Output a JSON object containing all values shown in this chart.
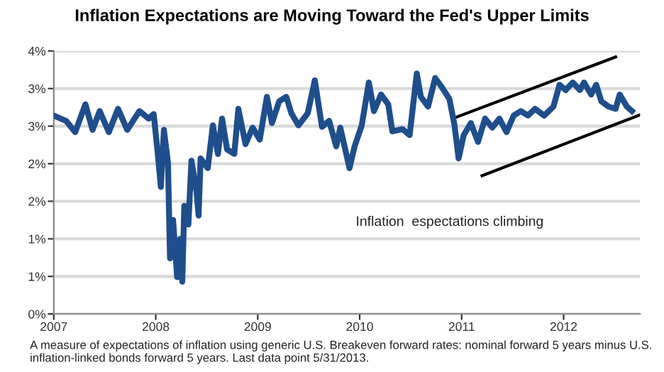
{
  "chart_data": {
    "type": "line",
    "title": "Inflation Expectations are Moving Toward the Fed's Upper Limits",
    "series": [
      {
        "color": "#1f4e8c",
        "x": [
          2007.0,
          2007.12,
          2007.21,
          2007.31,
          2007.38,
          2007.45,
          2007.54,
          2007.63,
          2007.72,
          2007.84,
          2007.93,
          2007.98,
          2008.02,
          2008.05,
          2008.08,
          2008.12,
          2008.14,
          2008.17,
          2008.21,
          2008.24,
          2008.26,
          2008.28,
          2008.32,
          2008.35,
          2008.4,
          2008.42,
          2008.44,
          2008.51,
          2008.56,
          2008.61,
          2008.65,
          2008.7,
          2008.77,
          2008.81,
          2008.88,
          2008.95,
          2009.02,
          2009.09,
          2009.14,
          2009.21,
          2009.28,
          2009.33,
          2009.4,
          2009.49,
          2009.56,
          2009.63,
          2009.7,
          2009.77,
          2009.81,
          2009.9,
          2009.95,
          2010.02,
          2010.09,
          2010.14,
          2010.21,
          2010.28,
          2010.32,
          2010.42,
          2010.49,
          2010.56,
          2010.6,
          2010.67,
          2010.74,
          2010.81,
          2010.88,
          2010.93,
          2010.97,
          2011.02,
          2011.09,
          2011.16,
          2011.23,
          2011.3,
          2011.37,
          2011.44,
          2011.51,
          2011.58,
          2011.65,
          2011.72,
          2011.81,
          2011.9,
          2011.96,
          2012.02,
          2012.09,
          2012.16,
          2012.2,
          2012.27,
          2012.32,
          2012.37,
          2012.44,
          2012.51,
          2012.55,
          2012.62,
          2012.67
        ],
        "values": [
          2.64,
          2.57,
          2.42,
          2.79,
          2.45,
          2.7,
          2.42,
          2.73,
          2.45,
          2.7,
          2.6,
          2.66,
          2.13,
          1.69,
          2.45,
          2.01,
          0.74,
          1.25,
          0.49,
          1.0,
          0.43,
          1.44,
          1.19,
          2.04,
          1.63,
          1.31,
          2.07,
          1.94,
          2.51,
          2.13,
          2.6,
          2.19,
          2.13,
          2.73,
          2.26,
          2.48,
          2.32,
          2.89,
          2.54,
          2.83,
          2.89,
          2.67,
          2.51,
          2.67,
          3.11,
          2.49,
          2.57,
          2.23,
          2.48,
          1.94,
          2.23,
          2.51,
          3.08,
          2.7,
          2.92,
          2.79,
          2.43,
          2.46,
          2.38,
          3.2,
          2.89,
          2.76,
          3.14,
          3.01,
          2.86,
          2.51,
          2.07,
          2.38,
          2.54,
          2.29,
          2.6,
          2.48,
          2.6,
          2.42,
          2.64,
          2.7,
          2.64,
          2.73,
          2.64,
          2.76,
          3.05,
          2.98,
          3.08,
          2.98,
          3.08,
          2.92,
          3.05,
          2.83,
          2.76,
          2.73,
          2.92,
          2.76,
          2.7
        ]
      },
      {
        "color": "#000000",
        "x": [
          2010.95,
          2012.51
        ],
        "values": [
          2.62,
          3.42
        ]
      },
      {
        "color": "#000000",
        "x": [
          2011.2,
          2012.75
        ],
        "values": [
          1.84,
          2.65
        ]
      }
    ],
    "xlim": [
      2007,
      2012.75
    ],
    "xticks": [
      2007,
      2008,
      2009,
      2010,
      2011,
      2012
    ],
    "ylim": [
      0,
      3.5
    ],
    "yticks": [
      {
        "value": 0,
        "label": "0%"
      },
      {
        "value": 0.5,
        "label": "1%"
      },
      {
        "value": 1,
        "label": "1%"
      },
      {
        "value": 1.5,
        "label": "2%"
      },
      {
        "value": 2,
        "label": "2%"
      },
      {
        "value": 2.5,
        "label": "3%"
      },
      {
        "value": 3,
        "label": "3%"
      },
      {
        "value": 3.5,
        "label": "4%"
      }
    ],
    "grid": "y",
    "marker": "none",
    "line_style": "solid",
    "annotations": [
      "Inflation  espectations climbing",
      "A measure of expectations of inflation using generic U.S. Breakeven forward rates: nominal forward 5 years minus U.S. inflation-linked bonds forward 5 years. Last data point 5/31/2013."
    ]
  }
}
